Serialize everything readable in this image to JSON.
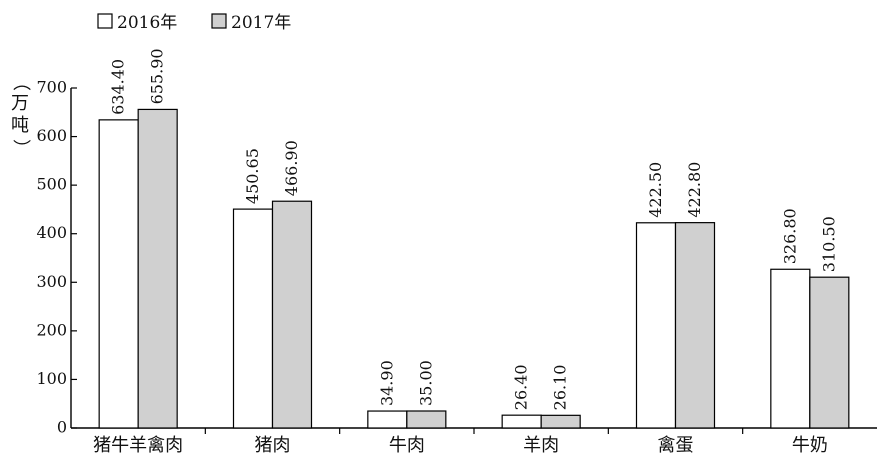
{
  "chart_data": {
    "type": "bar",
    "ylabel": "（万吨）",
    "categories": [
      "猪牛羊禽肉",
      "猪肉",
      "牛肉",
      "羊肉",
      "禽蛋",
      "牛奶"
    ],
    "series": [
      {
        "name": "2016年",
        "values": [
          634.4,
          450.65,
          34.9,
          26.4,
          422.5,
          326.8
        ],
        "labels": [
          "634.40",
          "450.65",
          "34.90",
          "26.40",
          "422.50",
          "326.80"
        ],
        "color": "#ffffff"
      },
      {
        "name": "2017年",
        "values": [
          655.9,
          466.9,
          35.0,
          26.1,
          422.8,
          310.5
        ],
        "labels": [
          "655.90",
          "466.90",
          "35.00",
          "26.10",
          "422.80",
          "310.50"
        ],
        "color": "#d0d0d0"
      }
    ],
    "ylim": [
      0,
      700
    ],
    "yticks": [
      "0",
      "100",
      "200",
      "300",
      "400",
      "500",
      "600",
      "700"
    ],
    "grid": false,
    "legend_position": "top-left"
  }
}
